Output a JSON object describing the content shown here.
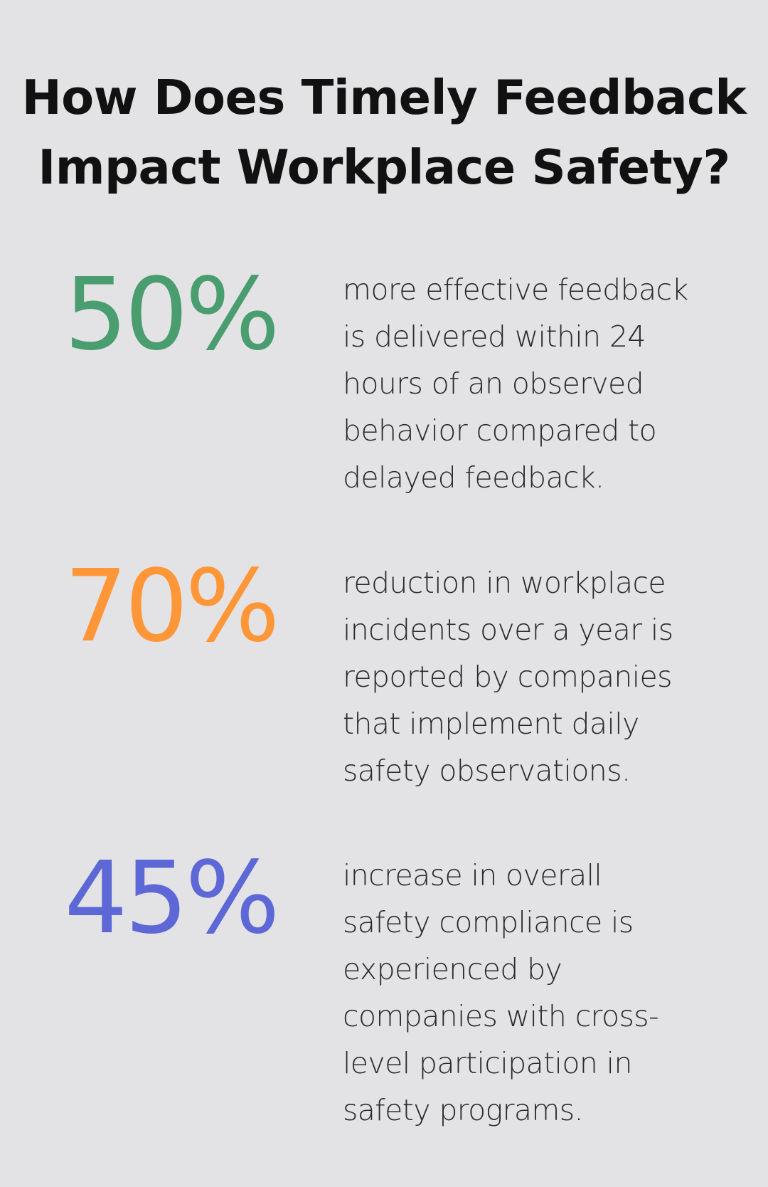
{
  "title": {
    "line1": "How Does Timely Feedback",
    "line2": "Impact Workplace Safety?"
  },
  "stats": [
    {
      "value": "50%",
      "color": "#4a9d6f",
      "description": "more effective feedback\nis delivered within 24\nhours of an observed\nbehavior compared to\ndelayed feedback."
    },
    {
      "value": "70%",
      "color": "#ff9638",
      "description": "reduction in workplace\nincidents over a year is\nreported by companies\nthat implement daily\nsafety observations."
    },
    {
      "value": "45%",
      "color": "#5d68d6",
      "description": "increase in overall\nsafety compliance is\nexperienced by\ncompanies with cross-\nlevel participation in\nsafety programs."
    }
  ]
}
